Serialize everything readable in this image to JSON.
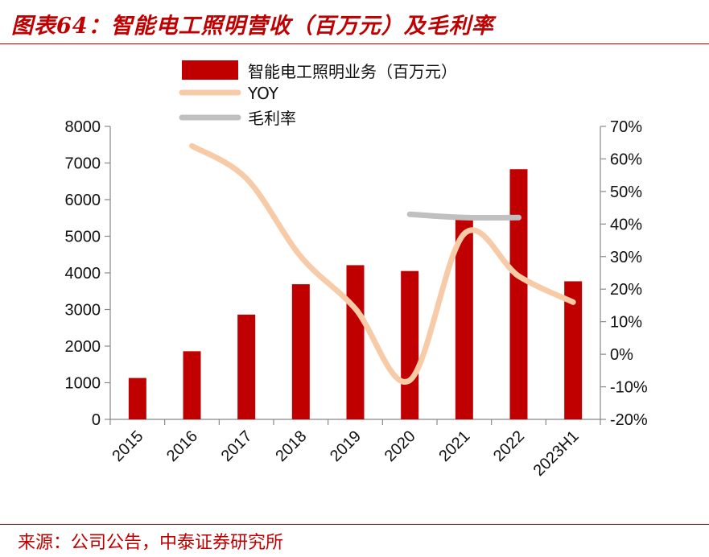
{
  "header": {
    "title": "图表64：智能电工照明营收（百万元）及毛利率"
  },
  "footer": {
    "source": "来源：公司公告，中泰证券研究所"
  },
  "chart_data": {
    "type": "bar",
    "title": "智能电工照明营收（百万元）及毛利率",
    "categories": [
      "2015",
      "2016",
      "2017",
      "2018",
      "2019",
      "2020",
      "2021",
      "2022",
      "2023H1"
    ],
    "series": [
      {
        "name": "智能电工照明业务（百万元）",
        "type": "bar",
        "axis": "left",
        "values": [
          1130,
          1860,
          2860,
          3690,
          4210,
          4050,
          5450,
          6830,
          3770
        ]
      },
      {
        "name": "YOY",
        "type": "line",
        "axis": "right",
        "values": [
          null,
          64.0,
          54.0,
          30.0,
          14.0,
          -8.0,
          37.0,
          24.0,
          16.0
        ]
      },
      {
        "name": "毛利率",
        "type": "line",
        "axis": "right",
        "values": [
          null,
          null,
          null,
          null,
          null,
          43.0,
          42.0,
          42.0,
          null
        ]
      }
    ],
    "y_left": {
      "min": 0,
      "max": 8000,
      "step": 1000,
      "ticks": [
        "0",
        "1000",
        "2000",
        "3000",
        "4000",
        "5000",
        "6000",
        "7000",
        "8000"
      ]
    },
    "y_right": {
      "min": -20,
      "max": 70,
      "step": 10,
      "ticks": [
        "-20%",
        "-10%",
        "0%",
        "10%",
        "20%",
        "30%",
        "40%",
        "50%",
        "60%",
        "70%"
      ]
    },
    "legend_position": "top-center",
    "colors": {
      "bar": "#c00000",
      "yoy": "#f8cba8",
      "margin": "#c0c0c0",
      "accent": "#c00000"
    }
  }
}
